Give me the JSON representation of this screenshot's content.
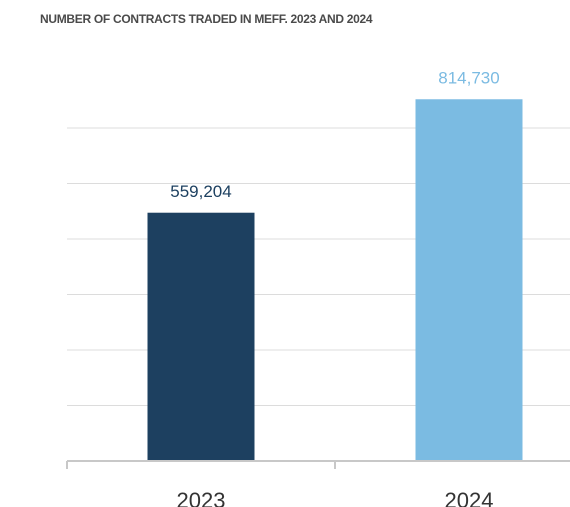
{
  "chart_data": {
    "type": "bar",
    "title": "NUMBER OF CONTRACTS TRADED IN MEFF. 2023 AND 2024",
    "categories": [
      "2023",
      "2024"
    ],
    "values": [
      559204,
      814730
    ],
    "value_labels": [
      "559,204",
      "814,730"
    ],
    "colors": [
      "#1d4060",
      "#7bbbe2"
    ],
    "ylim": [
      0,
      875000
    ],
    "yticks": [
      0,
      125000,
      250000,
      375000,
      500000,
      625000,
      750000
    ],
    "grid": true
  }
}
